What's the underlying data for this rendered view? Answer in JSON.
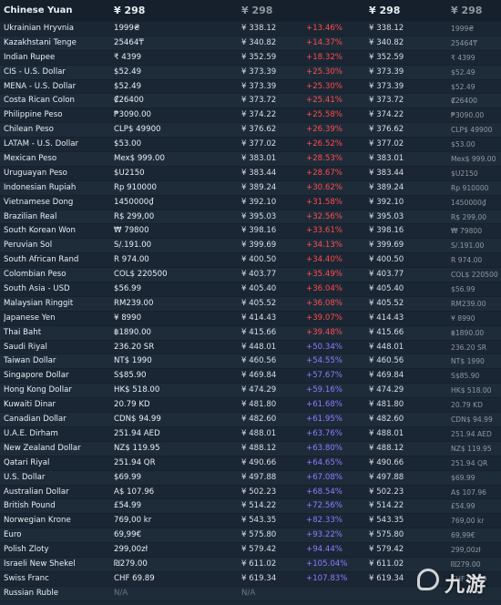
{
  "header": {
    "base_currency": "Chinese Yuan",
    "base_price": "¥ 298",
    "col3": "¥ 298",
    "col5": "¥ 298",
    "col6": "¥ 298"
  },
  "rows": [
    [
      "Ukrainian Hryvnia",
      "1999₴",
      "¥ 338.12",
      "+13.46%",
      "¥ 338.12",
      "1999₴"
    ],
    [
      "Kazakhstani Tenge",
      "25464₸",
      "¥ 340.82",
      "+14.37%",
      "¥ 340.82",
      "25464₸"
    ],
    [
      "Indian Rupee",
      "₹ 4399",
      "¥ 352.59",
      "+18.32%",
      "¥ 352.59",
      "₹ 4399"
    ],
    [
      "CIS - U.S. Dollar",
      "$52.49",
      "¥ 373.39",
      "+25.30%",
      "¥ 373.39",
      "$52.49"
    ],
    [
      "MENA - U.S. Dollar",
      "$52.49",
      "¥ 373.39",
      "+25.30%",
      "¥ 373.39",
      "$52.49"
    ],
    [
      "Costa Rican Colon",
      "₡26400",
      "¥ 373.72",
      "+25.41%",
      "¥ 373.72",
      "₡26400"
    ],
    [
      "Philippine Peso",
      "₱3090.00",
      "¥ 374.22",
      "+25.58%",
      "¥ 374.22",
      "₱3090.00"
    ],
    [
      "Chilean Peso",
      "CLP$ 49900",
      "¥ 376.62",
      "+26.39%",
      "¥ 376.62",
      "CLP$ 49900"
    ],
    [
      "LATAM - U.S. Dollar",
      "$53.00",
      "¥ 377.02",
      "+26.52%",
      "¥ 377.02",
      "$53.00"
    ],
    [
      "Mexican Peso",
      "Mex$ 999.00",
      "¥ 383.01",
      "+28.53%",
      "¥ 383.01",
      "Mex$ 999.00"
    ],
    [
      "Uruguayan Peso",
      "$U2150",
      "¥ 383.44",
      "+28.67%",
      "¥ 383.44",
      "$U2150"
    ],
    [
      "Indonesian Rupiah",
      "Rp 910000",
      "¥ 389.24",
      "+30.62%",
      "¥ 389.24",
      "Rp 910000"
    ],
    [
      "Vietnamese Dong",
      "1450000₫",
      "¥ 392.10",
      "+31.58%",
      "¥ 392.10",
      "1450000₫"
    ],
    [
      "Brazilian Real",
      "R$ 299,00",
      "¥ 395.03",
      "+32.56%",
      "¥ 395.03",
      "R$ 299,00"
    ],
    [
      "South Korean Won",
      "₩ 79800",
      "¥ 398.16",
      "+33.61%",
      "¥ 398.16",
      "₩ 79800"
    ],
    [
      "Peruvian Sol",
      "S/.191.00",
      "¥ 399.69",
      "+34.13%",
      "¥ 399.69",
      "S/.191.00"
    ],
    [
      "South African Rand",
      "R 974.00",
      "¥ 400.50",
      "+34.40%",
      "¥ 400.50",
      "R 974.00"
    ],
    [
      "Colombian Peso",
      "COL$ 220500",
      "¥ 403.77",
      "+35.49%",
      "¥ 403.77",
      "COL$ 220500"
    ],
    [
      "South Asia - USD",
      "$56.99",
      "¥ 405.40",
      "+36.04%",
      "¥ 405.40",
      "$56.99"
    ],
    [
      "Malaysian Ringgit",
      "RM239.00",
      "¥ 405.52",
      "+36.08%",
      "¥ 405.52",
      "RM239.00"
    ],
    [
      "Japanese Yen",
      "¥ 8990",
      "¥ 414.43",
      "+39.07%",
      "¥ 414.43",
      "¥ 8990"
    ],
    [
      "Thai Baht",
      "฿1890.00",
      "¥ 415.66",
      "+39.48%",
      "¥ 415.66",
      "฿1890.00"
    ],
    [
      "Saudi Riyal",
      "236.20 SR",
      "¥ 448.01",
      "+50.34%",
      "¥ 448.01",
      "236.20 SR"
    ],
    [
      "Taiwan Dollar",
      "NT$ 1990",
      "¥ 460.56",
      "+54.55%",
      "¥ 460.56",
      "NT$ 1990"
    ],
    [
      "Singapore Dollar",
      "S$85.90",
      "¥ 469.84",
      "+57.67%",
      "¥ 469.84",
      "S$85.90"
    ],
    [
      "Hong Kong Dollar",
      "HK$ 518.00",
      "¥ 474.29",
      "+59.16%",
      "¥ 474.29",
      "HK$ 518.00"
    ],
    [
      "Kuwaiti Dinar",
      "20.79 KD",
      "¥ 481.80",
      "+61.68%",
      "¥ 481.80",
      "20.79 KD"
    ],
    [
      "Canadian Dollar",
      "CDN$ 94.99",
      "¥ 482.60",
      "+61.95%",
      "¥ 482.60",
      "CDN$ 94.99"
    ],
    [
      "U.A.E. Dirham",
      "251.94 AED",
      "¥ 488.01",
      "+63.76%",
      "¥ 488.01",
      "251.94 AED"
    ],
    [
      "New Zealand Dollar",
      "NZ$ 119.95",
      "¥ 488.12",
      "+63.80%",
      "¥ 488.12",
      "NZ$ 119.95"
    ],
    [
      "Qatari Riyal",
      "251.94 QR",
      "¥ 490.66",
      "+64.65%",
      "¥ 490.66",
      "251.94 QR"
    ],
    [
      "U.S. Dollar",
      "$69.99",
      "¥ 497.88",
      "+67.08%",
      "¥ 497.88",
      "$69.99"
    ],
    [
      "Australian Dollar",
      "A$ 107.96",
      "¥ 502.23",
      "+68.54%",
      "¥ 502.23",
      "A$ 107.96"
    ],
    [
      "British Pound",
      "£54.99",
      "¥ 514.22",
      "+72.56%",
      "¥ 514.22",
      "£54.99"
    ],
    [
      "Norwegian Krone",
      "769,00 kr",
      "¥ 543.35",
      "+82.33%",
      "¥ 543.35",
      "769,00 kr"
    ],
    [
      "Euro",
      "69,99€",
      "¥ 575.80",
      "+93.22%",
      "¥ 575.80",
      "69,99€"
    ],
    [
      "Polish Zloty",
      "299,00zł",
      "¥ 579.42",
      "+94.44%",
      "¥ 579.42",
      "299,00zł"
    ],
    [
      "Israeli New Shekel",
      "₪279.00",
      "¥ 611.02",
      "+105.04%",
      "¥ 611.02",
      "₪279.00"
    ],
    [
      "Swiss Franc",
      "CHF 69.89",
      "¥ 619.34",
      "+107.83%",
      "¥ 619.34",
      "CHF 69.89"
    ],
    [
      "Russian Ruble",
      "N/A",
      "N/A",
      "",
      "",
      ""
    ]
  ],
  "row_colors": {
    "low": "#ff4c4c",
    "high": "#8e7cff"
  },
  "watermark": {
    "text": "九游"
  }
}
